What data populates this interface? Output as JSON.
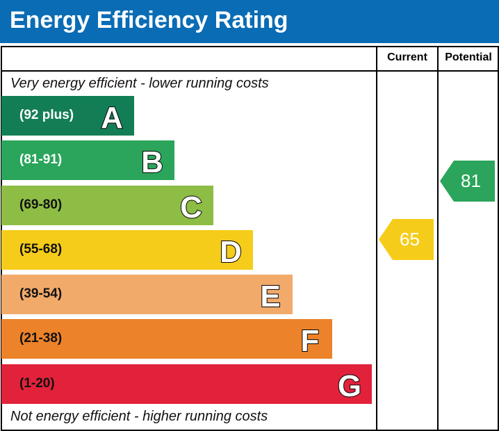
{
  "title": "Energy Efficiency Rating",
  "columns": {
    "current": "Current",
    "potential": "Potential"
  },
  "notes": {
    "top": "Very energy efficient - lower running costs",
    "bottom": "Not energy efficient - higher running costs"
  },
  "chart_data": {
    "type": "bar",
    "title": "Energy Efficiency Rating",
    "bands": [
      {
        "letter": "A",
        "range": "(92 plus)",
        "color": "#137e56",
        "text_color": "#ffffff"
      },
      {
        "letter": "B",
        "range": "(81-91)",
        "color": "#2aa55b",
        "text_color": "#ffffff"
      },
      {
        "letter": "C",
        "range": "(69-80)",
        "color": "#8dbd45",
        "text_color": "#111111"
      },
      {
        "letter": "D",
        "range": "(55-68)",
        "color": "#f6cc1a",
        "text_color": "#111111"
      },
      {
        "letter": "E",
        "range": "(39-54)",
        "color": "#f2aa6a",
        "text_color": "#111111"
      },
      {
        "letter": "F",
        "range": "(21-38)",
        "color": "#ec8229",
        "text_color": "#111111"
      },
      {
        "letter": "G",
        "range": "(1-20)",
        "color": "#e2223b",
        "text_color": "#111111"
      }
    ],
    "current": {
      "value": "65",
      "band": "D",
      "color": "#f6cc1a"
    },
    "potential": {
      "value": "81",
      "band": "B",
      "color": "#2aa55b"
    }
  }
}
